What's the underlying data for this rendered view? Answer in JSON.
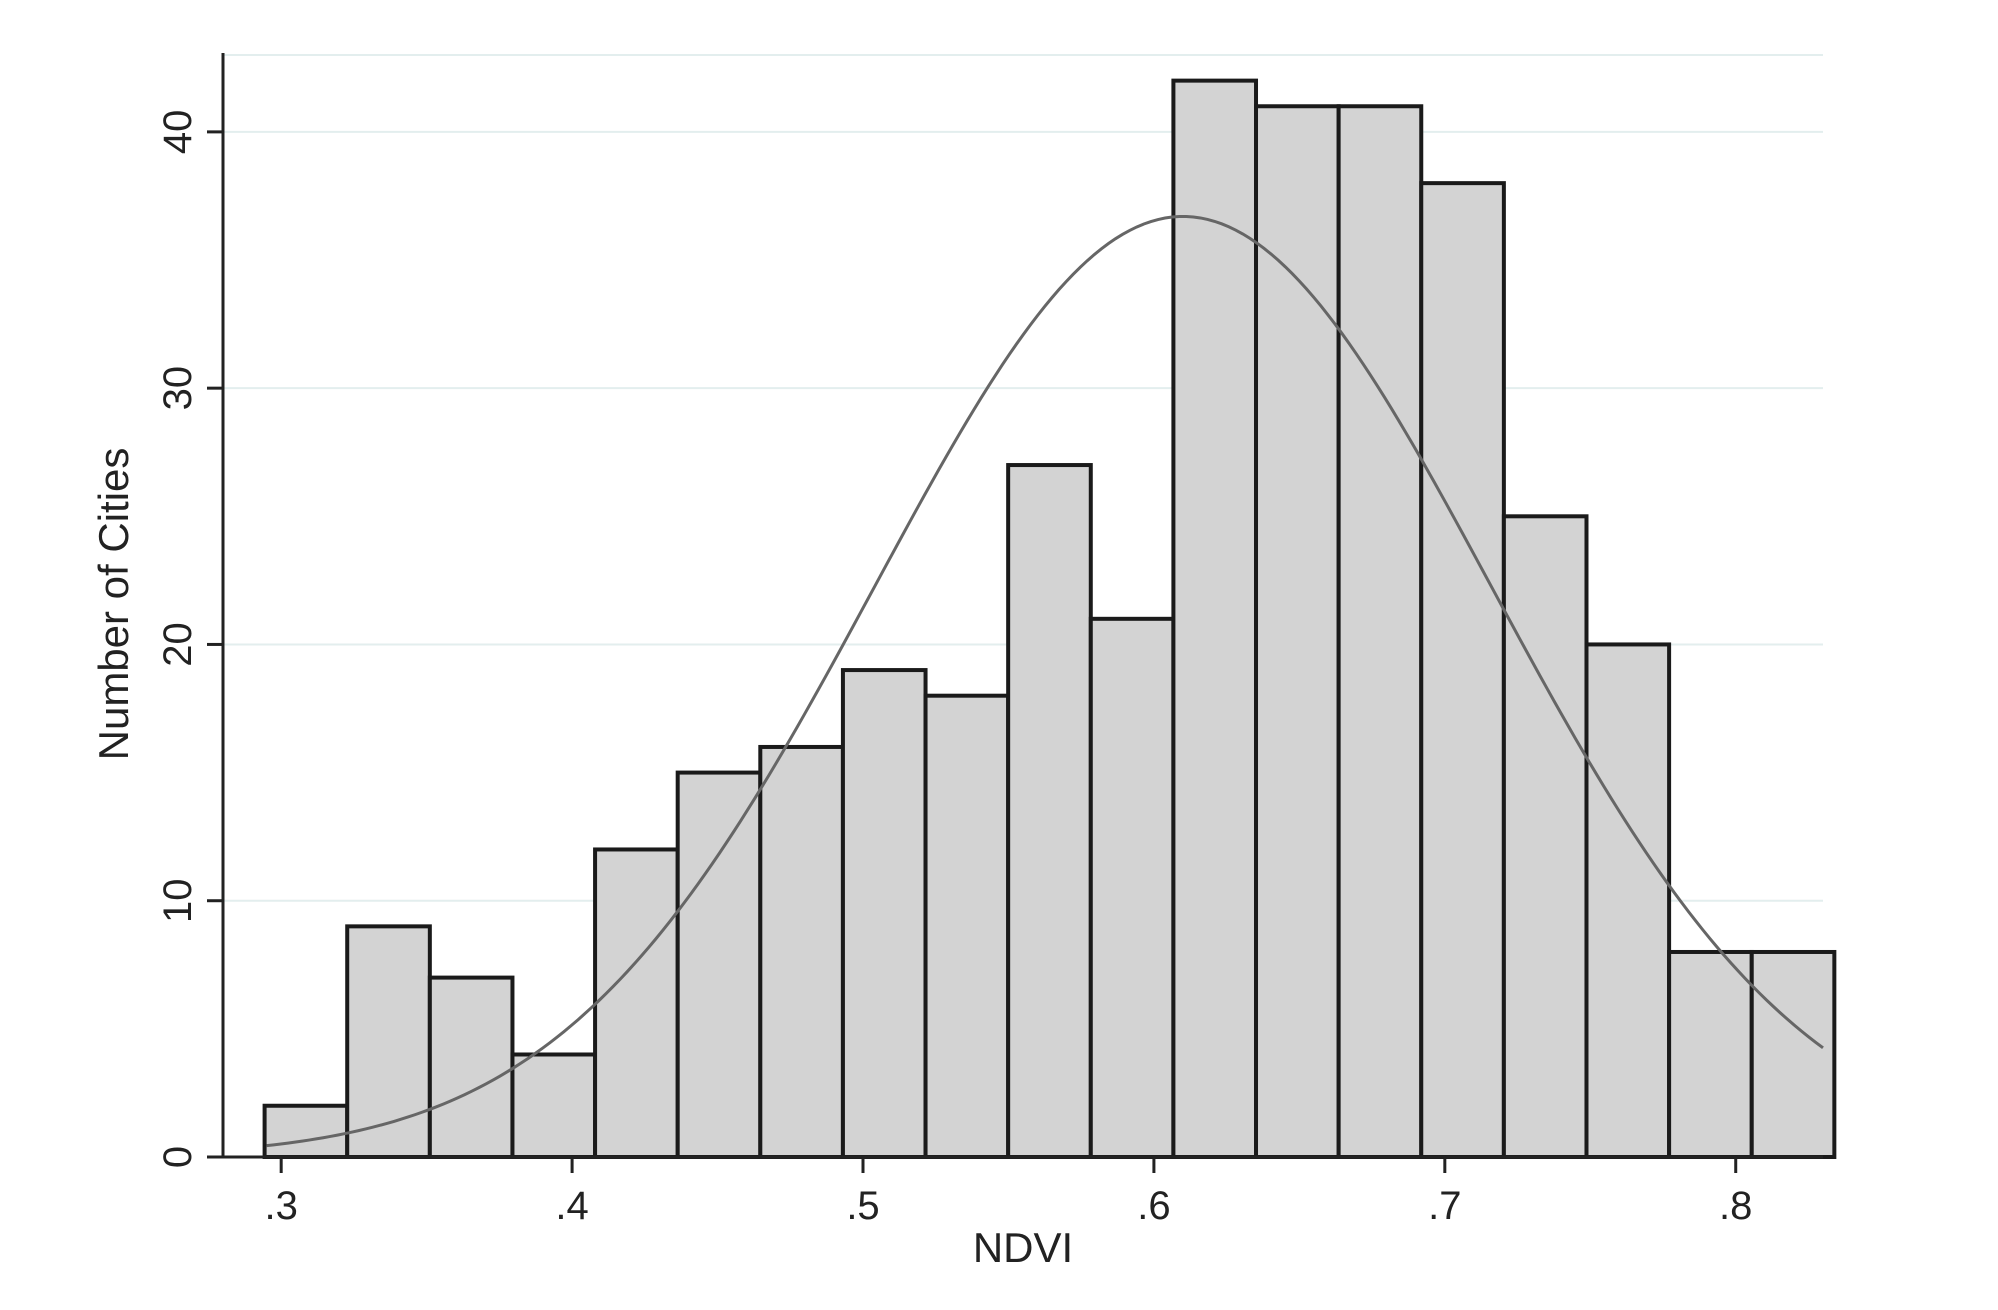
{
  "chart_data": {
    "type": "bar",
    "subtype": "histogram",
    "xlabel": "NDVI",
    "ylabel": "Number of Cities",
    "xlim": [
      0.28,
      0.83
    ],
    "ylim": [
      0,
      43
    ],
    "grid": true,
    "legend": "none",
    "colors": {
      "bar_fill": "#d3d3d3",
      "bar_edge": "#1a1a1a",
      "curve": "#666666",
      "grid": "#e3eeee",
      "axis": "#222222"
    },
    "x_ticks": [
      {
        "value": 0.3,
        "label": ".3"
      },
      {
        "value": 0.4,
        "label": ".4"
      },
      {
        "value": 0.5,
        "label": ".5"
      },
      {
        "value": 0.6,
        "label": ".6"
      },
      {
        "value": 0.7,
        "label": ".7"
      },
      {
        "value": 0.8,
        "label": ".8"
      }
    ],
    "y_ticks": [
      {
        "value": 0,
        "label": "0"
      },
      {
        "value": 10,
        "label": "10"
      },
      {
        "value": 20,
        "label": "20"
      },
      {
        "value": 30,
        "label": "30"
      },
      {
        "value": 40,
        "label": "40"
      }
    ],
    "bins": [
      {
        "start": 0.2943,
        "end": 0.3227,
        "count": 2
      },
      {
        "start": 0.3227,
        "end": 0.3511,
        "count": 9
      },
      {
        "start": 0.3511,
        "end": 0.3795,
        "count": 7
      },
      {
        "start": 0.3795,
        "end": 0.4079,
        "count": 4
      },
      {
        "start": 0.4079,
        "end": 0.4363,
        "count": 12
      },
      {
        "start": 0.4363,
        "end": 0.4647,
        "count": 15
      },
      {
        "start": 0.4647,
        "end": 0.4931,
        "count": 16
      },
      {
        "start": 0.4931,
        "end": 0.5215,
        "count": 19
      },
      {
        "start": 0.5215,
        "end": 0.5499,
        "count": 18
      },
      {
        "start": 0.5499,
        "end": 0.5783,
        "count": 27
      },
      {
        "start": 0.5783,
        "end": 0.6067,
        "count": 21
      },
      {
        "start": 0.6067,
        "end": 0.6351,
        "count": 42
      },
      {
        "start": 0.6351,
        "end": 0.6635,
        "count": 41
      },
      {
        "start": 0.6635,
        "end": 0.6919,
        "count": 41
      },
      {
        "start": 0.6919,
        "end": 0.7203,
        "count": 38
      },
      {
        "start": 0.7203,
        "end": 0.7487,
        "count": 25
      },
      {
        "start": 0.7487,
        "end": 0.7771,
        "count": 20
      },
      {
        "start": 0.7771,
        "end": 0.8055,
        "count": 8
      },
      {
        "start": 0.8055,
        "end": 0.8339,
        "count": 8
      }
    ],
    "normal_curve": {
      "mean": 0.61,
      "sd": 0.106,
      "peak": 36.7,
      "x_start": 0.295,
      "x_end": 0.83
    }
  }
}
